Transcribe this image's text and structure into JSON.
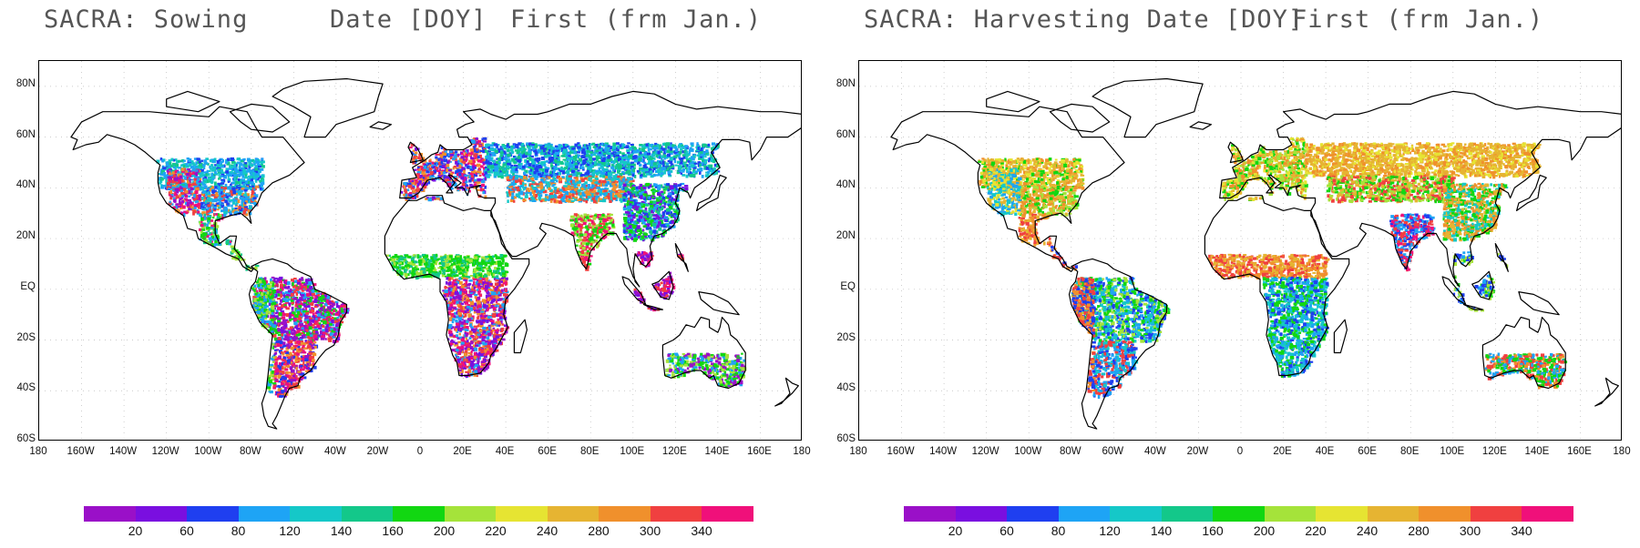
{
  "panels": [
    {
      "title_parts": [
        "SACRA: Sowing",
        "Date [DOY]",
        "First (frm Jan.)"
      ],
      "mode": "sowing"
    },
    {
      "title_parts": [
        "SACRA: Harvesting Date [DOY]",
        "First (frm Jan.)"
      ],
      "mode": "harvest"
    }
  ],
  "y_ticks": [
    "80N",
    "60N",
    "40N",
    "20N",
    "EQ",
    "20S",
    "40S",
    "60S"
  ],
  "x_ticks": [
    "180",
    "160W",
    "140W",
    "120W",
    "100W",
    "80W",
    "60W",
    "40W",
    "20W",
    "0",
    "20E",
    "40E",
    "60E",
    "80E",
    "100E",
    "120E",
    "140E",
    "160E",
    "180"
  ],
  "colorbar": {
    "colors": [
      "#9a10c8",
      "#7a0fe0",
      "#1f3ff0",
      "#1ea4f5",
      "#15c8c8",
      "#13c88a",
      "#12d712",
      "#a5e33a",
      "#e6e432",
      "#e6b432",
      "#f0902c",
      "#f04040",
      "#f0107a"
    ],
    "labels": [
      "20",
      "60",
      "80",
      "120",
      "140",
      "160",
      "200",
      "220",
      "240",
      "280",
      "300",
      "340"
    ]
  }
}
